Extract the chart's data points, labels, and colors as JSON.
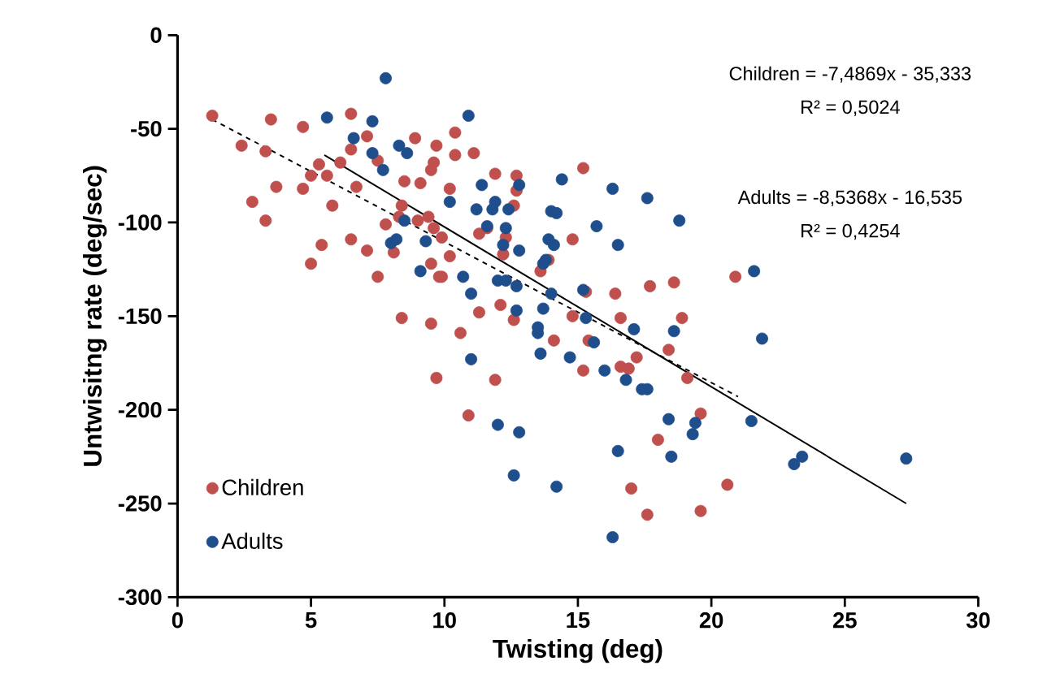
{
  "chart_data": {
    "type": "scatter",
    "xlabel": "Twisting (deg)",
    "ylabel": "Untwisitng rate (deg/sec)",
    "xlim": [
      0,
      30
    ],
    "ylim": [
      -300,
      0
    ],
    "xticks": [
      0,
      5,
      10,
      15,
      20,
      25,
      30
    ],
    "yticks": [
      -300,
      -250,
      -200,
      -150,
      -100,
      -50,
      0
    ],
    "legend": "bottom left",
    "annotations": [
      "Children = -7,4869x - 35,333",
      "R² = 0,5024",
      "Adults = -8,5368x - 16,535",
      "R² = 0,4254"
    ],
    "series": [
      {
        "name": "Children",
        "color": "#c0504d",
        "marker": "circle",
        "x": [
          1.3,
          3.5,
          4.7,
          6.5,
          2.4,
          3.3,
          7.1,
          8.9,
          9.7,
          6.5,
          5.3,
          5.0,
          5.6,
          6.1,
          7.5,
          9.6,
          9.5,
          8.5,
          9.1,
          3.7,
          4.7,
          6.7,
          2.8,
          5.8,
          8.4,
          3.3,
          7.8,
          8.3,
          9.0,
          9.4,
          9.6,
          5.4,
          6.5,
          7.1,
          8.1,
          5.0,
          9.5,
          7.5,
          9.8,
          8.4,
          9.5,
          9.7,
          10.4,
          10.4,
          11.1,
          11.9,
          12.7,
          12.7,
          15.2,
          10.2,
          12.6,
          11.3,
          11.6,
          9.9,
          12.3,
          12.2,
          13.9,
          14.8,
          13.6,
          10.2,
          9.9,
          11.3,
          12.1,
          12.6,
          10.6,
          14.1,
          14.8,
          15.4,
          15.3,
          16.4,
          16.6,
          17.7,
          18.6,
          18.9,
          18.4,
          11.9,
          15.2,
          16.6,
          16.9,
          17.2,
          19.1,
          19.6,
          18.0,
          10.9,
          17.0,
          17.6,
          19.6,
          20.9,
          20.6
        ],
        "values": [
          -43,
          -45,
          -49,
          -42,
          -59,
          -62,
          -54,
          -55,
          -59,
          -61,
          -69,
          -75,
          -75,
          -68,
          -67,
          -68,
          -72,
          -78,
          -79,
          -81,
          -82,
          -81,
          -89,
          -91,
          -91,
          -99,
          -101,
          -97,
          -99,
          -97,
          -103,
          -112,
          -109,
          -115,
          -116,
          -122,
          -122,
          -129,
          -129,
          -151,
          -154,
          -183,
          -52,
          -64,
          -63,
          -74,
          -75,
          -83,
          -71,
          -82,
          -91,
          -106,
          -103,
          -108,
          -108,
          -117,
          -120,
          -109,
          -126,
          -118,
          -129,
          -148,
          -144,
          -152,
          -159,
          -163,
          -150,
          -163,
          -137,
          -138,
          -151,
          -134,
          -132,
          -151,
          -168,
          -184,
          -179,
          -177,
          -178,
          -172,
          -183,
          -202,
          -216,
          -203,
          -242,
          -256,
          -254,
          -129,
          -240
        ]
      },
      {
        "name": "Adults",
        "color": "#1f4e8c",
        "marker": "circle",
        "x": [
          7.8,
          5.6,
          7.3,
          6.6,
          8.3,
          8.6,
          7.3,
          7.7,
          8.5,
          8.0,
          8.2,
          9.3,
          9.1,
          10.9,
          14.4,
          11.4,
          10.2,
          12.8,
          11.9,
          11.8,
          11.2,
          12.4,
          14.0,
          14.2,
          16.3,
          17.6,
          18.8,
          12.3,
          11.6,
          15.7,
          13.9,
          14.1,
          12.2,
          12.8,
          16.5,
          13.8,
          13.7,
          10.7,
          12.0,
          12.3,
          12.7,
          11.0,
          14.0,
          15.2,
          12.7,
          13.7,
          15.3,
          13.5,
          13.5,
          15.6,
          17.1,
          18.6,
          11.0,
          13.6,
          14.7,
          16.0,
          16.8,
          17.4,
          17.6,
          18.4,
          19.4,
          19.3,
          18.5,
          16.5,
          12.0,
          12.8,
          12.6,
          14.2,
          16.3,
          21.6,
          21.9,
          21.5,
          23.1,
          23.4,
          27.3
        ],
        "values": [
          -23,
          -44,
          -46,
          -55,
          -59,
          -63,
          -63,
          -72,
          -99,
          -111,
          -109,
          -110,
          -126,
          -43,
          -77,
          -80,
          -89,
          -80,
          -89,
          -93,
          -93,
          -93,
          -94,
          -95,
          -82,
          -87,
          -99,
          -103,
          -102,
          -102,
          -109,
          -112,
          -112,
          -115,
          -112,
          -120,
          -122,
          -129,
          -131,
          -131,
          -134,
          -138,
          -138,
          -136,
          -147,
          -146,
          -151,
          -156,
          -159,
          -164,
          -157,
          -158,
          -173,
          -170,
          -172,
          -179,
          -184,
          -189,
          -189,
          -205,
          -207,
          -213,
          -225,
          -222,
          -208,
          -212,
          -235,
          -241,
          -268,
          -126,
          -162,
          -206,
          -229,
          -225,
          -226
        ]
      },
      {
        "type": "line",
        "marker": "none",
        "color": "#000000",
        "line_style": "dashed",
        "x": [
          1.3,
          21.0
        ],
        "values": [
          -45,
          -193
        ]
      },
      {
        "type": "line",
        "marker": "none",
        "color": "#000000",
        "line_style": "solid",
        "x": [
          5.5,
          27.3
        ],
        "values": [
          -64,
          -250
        ]
      }
    ]
  }
}
